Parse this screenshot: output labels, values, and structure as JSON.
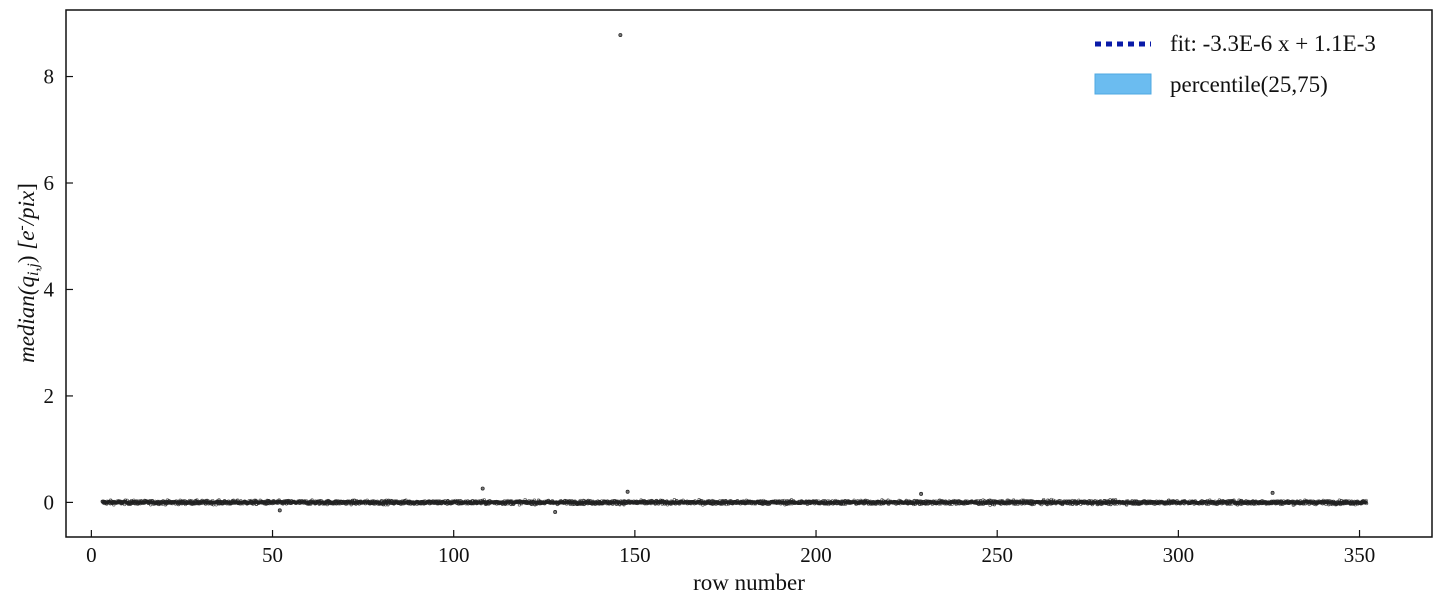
{
  "chart_data": {
    "type": "scatter",
    "title": "",
    "xlabel": "row number",
    "ylabel": "median(q_{i,j}) [e^-/pix]",
    "xlim": [
      -7,
      370
    ],
    "ylim": [
      -0.65,
      9.25
    ],
    "x_ticks": [
      0,
      50,
      100,
      150,
      200,
      250,
      300,
      350
    ],
    "y_ticks": [
      0,
      2,
      4,
      6,
      8
    ],
    "x_tick_labels": [
      "0",
      "50",
      "100",
      "150",
      "200",
      "250",
      "300",
      "350"
    ],
    "y_tick_labels": [
      "0",
      "2",
      "4",
      "6",
      "8"
    ],
    "grid": false,
    "legend_position": "top-right",
    "series": [
      {
        "name": "fit: -3.3E-6 x + 1.1E-3",
        "kind": "line",
        "style": "dotted",
        "color": "#0a1aa8",
        "slope": -3.3e-06,
        "intercept": 0.0011
      },
      {
        "name": "percentile(25,75)",
        "kind": "band",
        "color": "#6bbcf0",
        "lower": -0.02,
        "upper": 0.02
      },
      {
        "kind": "points",
        "color": "#222222",
        "x_range": [
          3,
          352
        ],
        "typical_spread": 0.05,
        "outliers": [
          {
            "x": 146,
            "y": 8.78
          },
          {
            "x": 108,
            "y": 0.26
          },
          {
            "x": 148,
            "y": 0.2
          },
          {
            "x": 326,
            "y": 0.18
          },
          {
            "x": 128,
            "y": -0.18
          },
          {
            "x": 52,
            "y": -0.15
          },
          {
            "x": 229,
            "y": 0.16
          }
        ]
      }
    ]
  }
}
